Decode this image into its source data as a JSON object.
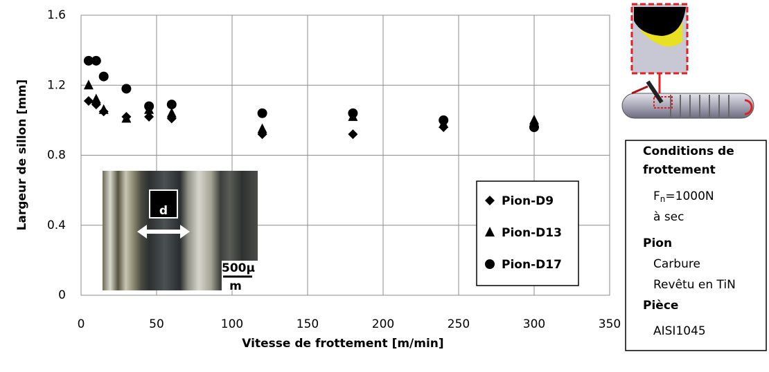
{
  "chart_data": {
    "type": "scatter",
    "x_label": "Vitesse de frottement [m/min]",
    "y_label": "Largeur de sillon [mm]",
    "xlim": [
      0,
      350
    ],
    "xticks": [
      0,
      50,
      100,
      150,
      200,
      250,
      300,
      350
    ],
    "ylim": [
      0,
      1.6
    ],
    "yticks": [
      0,
      0.4,
      0.8,
      1.2,
      1.6
    ],
    "grid": true,
    "legend": "lower right",
    "series": [
      {
        "name": "Pion-D9",
        "color": "#000000",
        "marker": "diamond",
        "x": [
          5,
          10,
          15,
          30,
          45,
          60,
          120,
          180,
          240,
          300
        ],
        "values": [
          1.11,
          1.09,
          1.05,
          1.02,
          1.02,
          1.01,
          0.92,
          0.92,
          0.96,
          0.96
        ]
      },
      {
        "name": "Pion-D13",
        "color": "#000000",
        "marker": "triangle",
        "x": [
          5,
          10,
          15,
          30,
          45,
          60,
          120,
          180,
          240,
          300
        ],
        "values": [
          1.2,
          1.12,
          1.06,
          1.01,
          1.06,
          1.04,
          0.95,
          1.02,
          0.98,
          1.0
        ]
      },
      {
        "name": "Pion-D17",
        "color": "#000000",
        "marker": "circle",
        "x": [
          5,
          10,
          15,
          30,
          45,
          60,
          120,
          180,
          240,
          300
        ],
        "values": [
          1.34,
          1.34,
          1.25,
          1.18,
          1.08,
          1.09,
          1.04,
          1.04,
          1.0,
          0.96
        ]
      }
    ],
    "annotations": [
      "d",
      "500µ",
      "m"
    ],
    "conditions": {
      "title_lines": [
        "Conditions de",
        "frottement"
      ],
      "force": {
        "symbol": "F",
        "subscript": "n",
        "text": "=1000N"
      },
      "dry": "à sec",
      "pin_heading": "Pion",
      "pin_lines": [
        "Carbure",
        "Revêtu en TiN"
      ],
      "part_heading": "Pièce",
      "part_material": "AISI1045"
    }
  }
}
